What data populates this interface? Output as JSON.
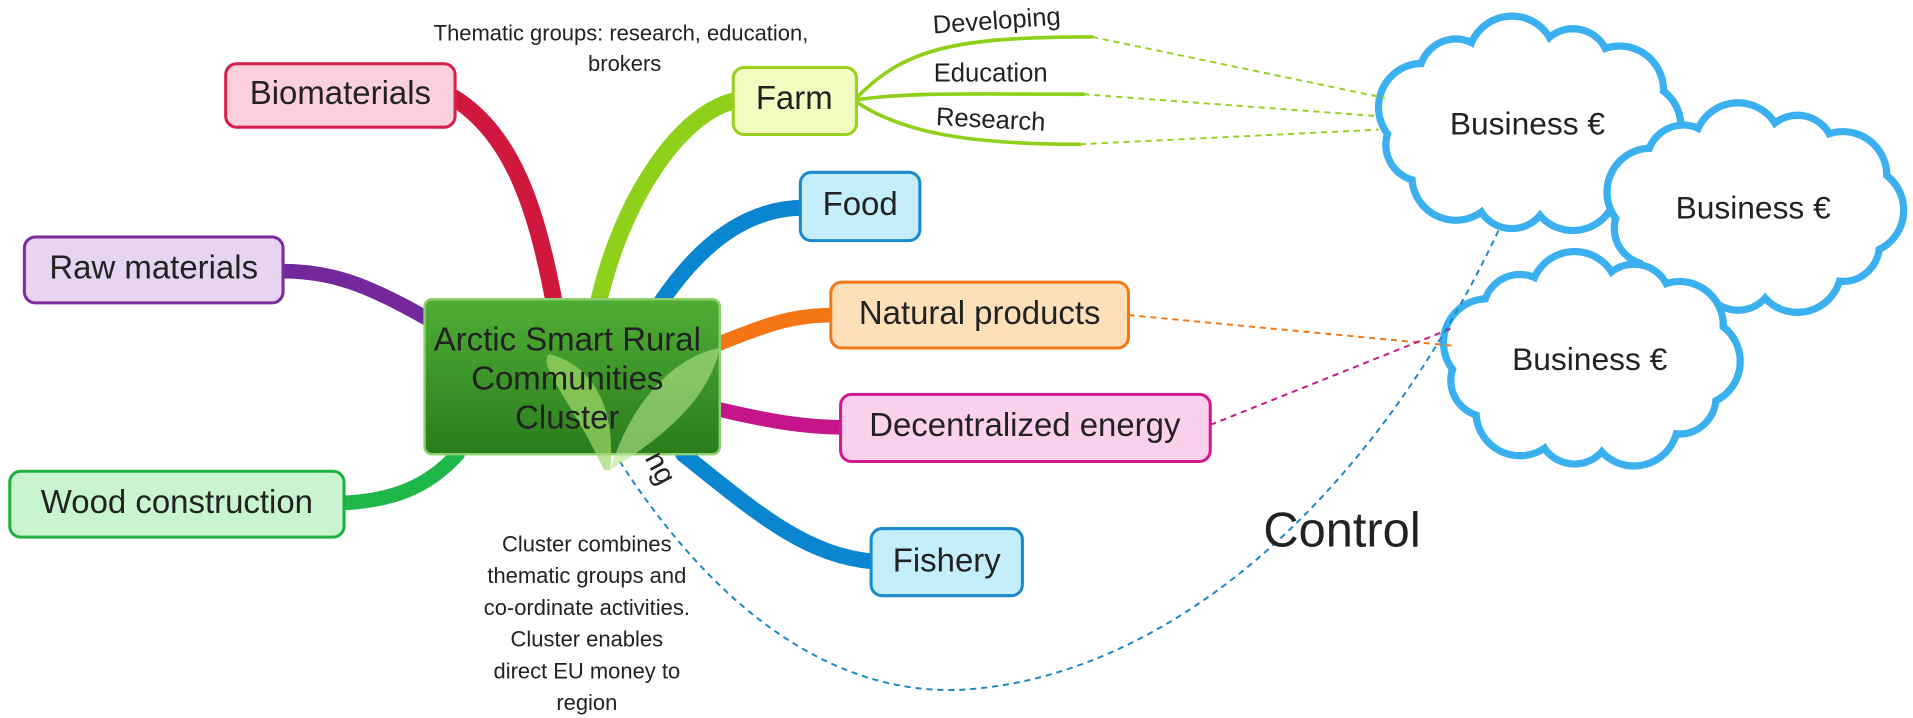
{
  "center": {
    "lines": [
      "Arctic Smart Rural",
      "Communities",
      "Cluster"
    ]
  },
  "branches": [
    {
      "label": "Biomaterials"
    },
    {
      "label": "Raw materials"
    },
    {
      "label": "Wood construction"
    },
    {
      "label": "Farm"
    },
    {
      "label": "Food"
    },
    {
      "label": "Natural products"
    },
    {
      "label": "Decentralized energy"
    },
    {
      "label": "Fishery"
    }
  ],
  "farm_topics": [
    "Developing",
    "Education",
    "Research"
  ],
  "clouds": [
    "Business €",
    "Business €",
    "Business €"
  ],
  "annotations": {
    "thematic_groups": [
      "Thematic groups: research, education,",
      "brokers"
    ],
    "cluster_note": [
      "Cluster combines",
      "thematic groups and",
      "co-ordinate activities.",
      "Cluster enables",
      "direct EU money to",
      "region"
    ],
    "control": "Control",
    "fragment": "ng"
  }
}
